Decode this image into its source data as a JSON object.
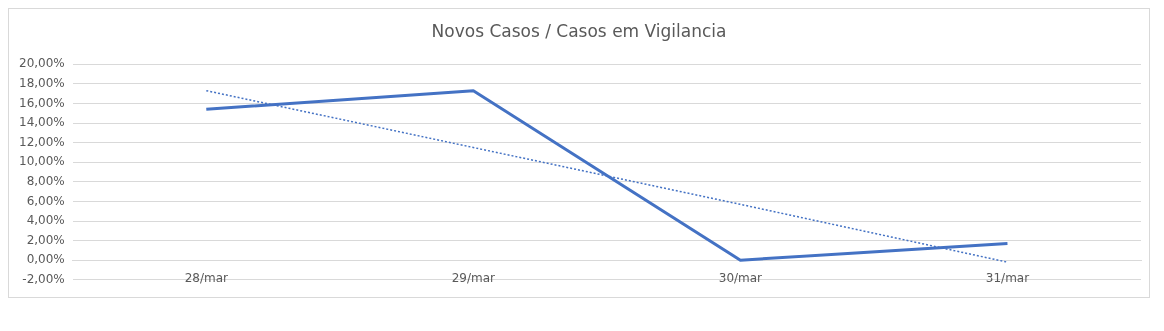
{
  "chart_data": {
    "type": "line",
    "title": "Novos Casos / Casos em Vigilancia",
    "categories": [
      "28/mar",
      "29/mar",
      "30/mar",
      "31/mar"
    ],
    "series": [
      {
        "color": "#4472c4",
        "values": [
          15.4,
          17.3,
          0.0,
          1.7
        ],
        "line_style": "solid"
      },
      {
        "color": "#4472c4",
        "values": [
          17.3,
          11.5,
          5.7,
          -0.2
        ],
        "line_style": "dotted"
      }
    ],
    "ylim": [
      -2,
      20
    ],
    "yticks": [
      {
        "value": -2,
        "label": "-2,00%"
      },
      {
        "value": 0,
        "label": "0,00%"
      },
      {
        "value": 2,
        "label": "2,00%"
      },
      {
        "value": 4,
        "label": "4,00%"
      },
      {
        "value": 6,
        "label": "6,00%"
      },
      {
        "value": 8,
        "label": "8,00%"
      },
      {
        "value": 10,
        "label": "10,00%"
      },
      {
        "value": 12,
        "label": "12,00%"
      },
      {
        "value": 14,
        "label": "14,00%"
      },
      {
        "value": 16,
        "label": "16,00%"
      },
      {
        "value": 18,
        "label": "18,00%"
      },
      {
        "value": 20,
        "label": "20,00%"
      }
    ],
    "grid": "y",
    "legend": false,
    "marker": "none"
  }
}
